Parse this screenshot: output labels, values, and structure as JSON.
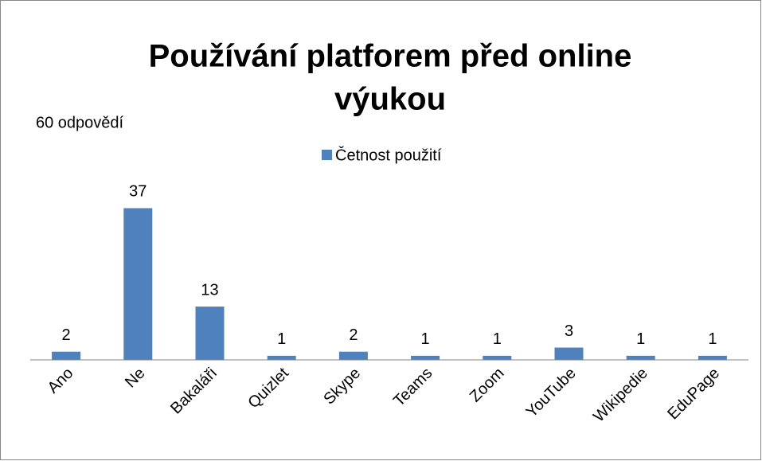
{
  "chart_data": {
    "type": "bar",
    "title_lines": [
      "Používání platforem před online",
      "výukou"
    ],
    "annotation": "60 odpovědí",
    "categories": [
      "Ano",
      "Ne",
      "Bakaláři",
      "Quizlet",
      "Skype",
      "Teams",
      "Zoom",
      "YouTube",
      "Wikipedie",
      "EduPage"
    ],
    "series": [
      {
        "name": "Četnost použití",
        "color": "#4f81bd",
        "values": [
          2,
          37,
          13,
          1,
          2,
          1,
          1,
          3,
          1,
          1
        ]
      }
    ],
    "ylim": [
      0,
      40
    ],
    "legend": "top"
  }
}
